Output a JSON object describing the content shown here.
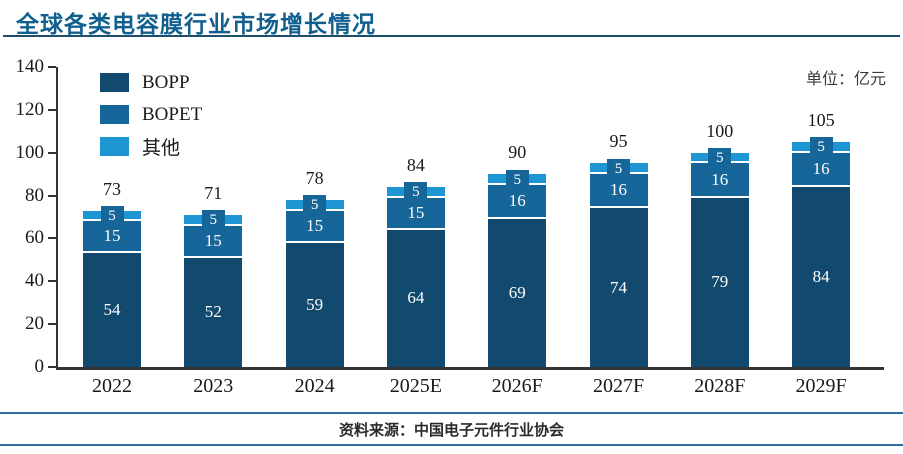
{
  "title": "全球各类电容膜行业市场增长情况",
  "unit_label": "单位：亿元",
  "source": "资料来源：中国电子元件行业协会",
  "colors": {
    "title": "#115f8f",
    "title_rule": "#1d4e6b",
    "axis": "#333333",
    "text": "#1a1a1a",
    "footer_rule": "#2e6ca4",
    "other_badge": "#17669a",
    "series": [
      "#114a6e",
      "#17669a",
      "#1f96d4"
    ]
  },
  "chart_data": {
    "type": "bar",
    "stacked": true,
    "title": "全球各类电容膜行业市场增长情况",
    "unit": "亿元",
    "categories": [
      "2022",
      "2023",
      "2024",
      "2025E",
      "2026F",
      "2027F",
      "2028F",
      "2029F"
    ],
    "series": [
      {
        "name": "BOPP",
        "values": [
          54,
          52,
          59,
          64,
          69,
          74,
          79,
          84
        ]
      },
      {
        "name": "BOPET",
        "values": [
          15,
          15,
          15,
          15,
          16,
          16,
          16,
          16
        ]
      },
      {
        "name": "其他",
        "values": [
          5,
          5,
          5,
          5,
          5,
          5,
          5,
          5
        ]
      }
    ],
    "totals": [
      73,
      71,
      78,
      84,
      90,
      95,
      100,
      105
    ],
    "ylim": [
      0,
      140
    ],
    "ytick_step": 20,
    "grid": false,
    "legend_position": "top-left"
  }
}
